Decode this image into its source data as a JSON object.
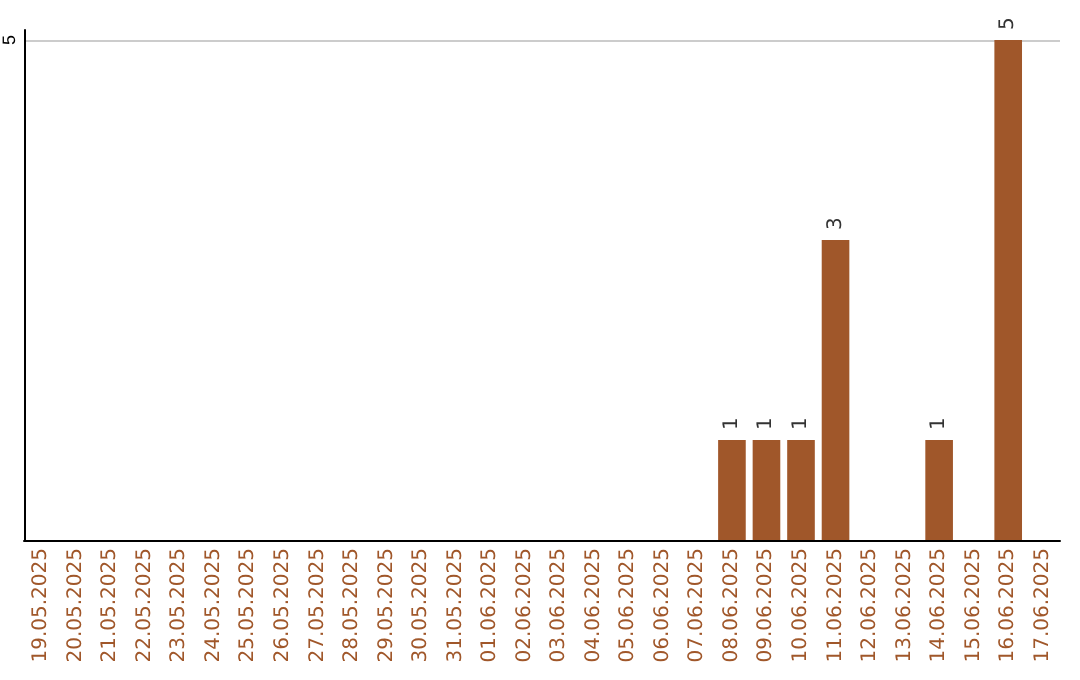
{
  "chart_data": {
    "type": "bar",
    "categories": [
      "19.05.2025",
      "20.05.2025",
      "21.05.2025",
      "22.05.2025",
      "23.05.2025",
      "24.05.2025",
      "25.05.2025",
      "26.05.2025",
      "27.05.2025",
      "28.05.2025",
      "29.05.2025",
      "30.05.2025",
      "31.05.2025",
      "01.06.2025",
      "02.06.2025",
      "03.06.2025",
      "04.06.2025",
      "05.06.2025",
      "06.06.2025",
      "07.06.2025",
      "08.06.2025",
      "09.06.2025",
      "10.06.2025",
      "11.06.2025",
      "12.06.2025",
      "13.06.2025",
      "14.06.2025",
      "15.06.2025",
      "16.06.2025",
      "17.06.2025"
    ],
    "values": [
      null,
      null,
      null,
      null,
      null,
      null,
      null,
      null,
      null,
      null,
      null,
      null,
      null,
      null,
      null,
      null,
      null,
      null,
      null,
      null,
      1,
      1,
      1,
      3,
      null,
      null,
      1,
      null,
      5,
      null
    ],
    "color": "#a0572a",
    "ylim": [
      0,
      5.1
    ],
    "yticks": [
      5
    ],
    "grid": "y",
    "data_labels": true
  }
}
